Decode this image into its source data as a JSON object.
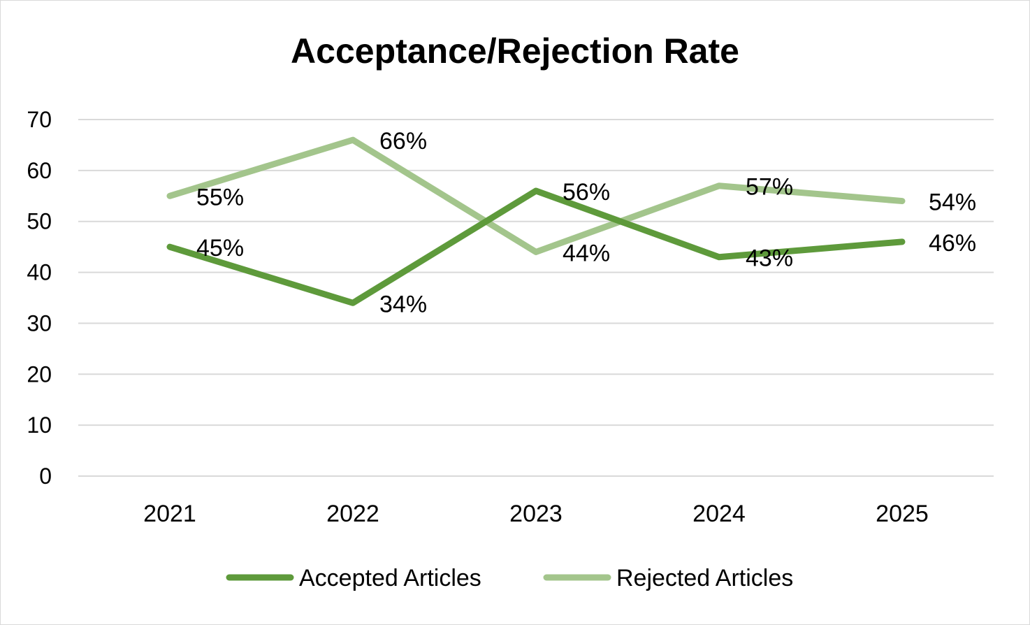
{
  "chart_data": {
    "type": "line",
    "title": "Acceptance/Rejection Rate",
    "categories": [
      "2021",
      "2022",
      "2023",
      "2024",
      "2025"
    ],
    "series": [
      {
        "name": "Accepted Articles",
        "values": [
          45,
          34,
          56,
          43,
          46
        ],
        "labels": [
          "45%",
          "34%",
          "56%",
          "43%",
          "46%"
        ],
        "color": "#5e9a3b"
      },
      {
        "name": "Rejected Articles",
        "values": [
          55,
          66,
          44,
          57,
          54
        ],
        "labels": [
          "55%",
          "66%",
          "44%",
          "57%",
          "54%"
        ],
        "color": "#a3c58c"
      }
    ],
    "ylim": [
      0,
      70
    ],
    "yticks": [
      "0",
      "10",
      "20",
      "30",
      "40",
      "50",
      "60",
      "70"
    ],
    "grid": true,
    "legend": "bottom"
  }
}
